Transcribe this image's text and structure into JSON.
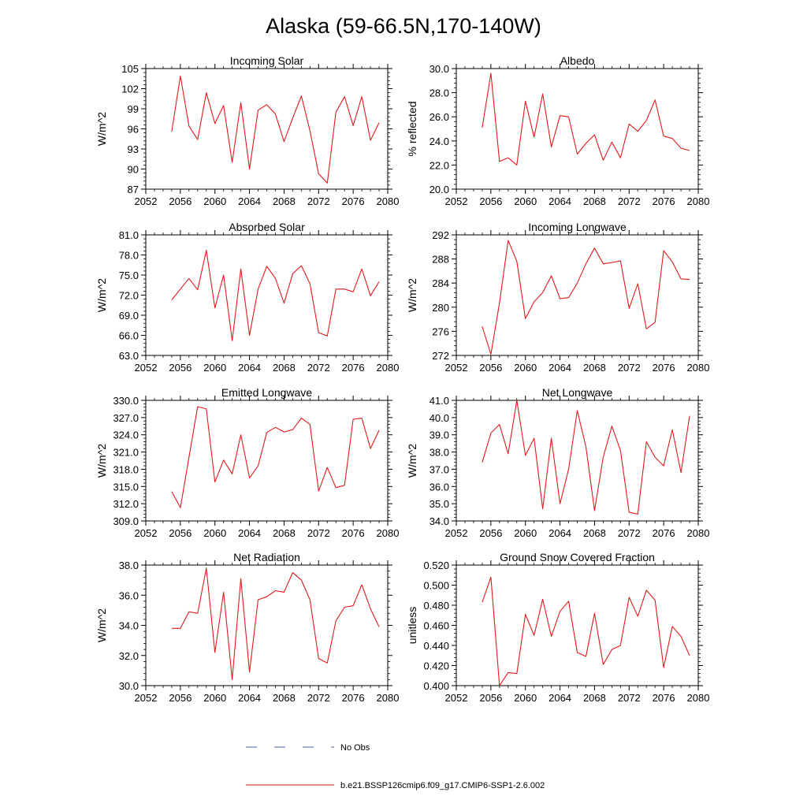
{
  "figure": {
    "title": "Alaska (59-66.5N,170-140W)"
  },
  "legend": {
    "obs_label": "No Obs",
    "obs_color": "#4a5fb0",
    "model_label": "b.e21.BSSP126cmip6.f09_g17.CMIP6-SSP1-2.6.002",
    "model_color": "#e31a1c"
  },
  "chart_data": [
    {
      "type": "line",
      "title": "Incoming Solar",
      "ylabel": "W/m^2",
      "xlim": [
        2052,
        2080
      ],
      "ylim": [
        87,
        105
      ],
      "x_ticks": [
        2052,
        2056,
        2060,
        2064,
        2068,
        2072,
        2076,
        2080
      ],
      "y_ticks": [
        "87",
        "90",
        "93",
        "96",
        "99",
        "102",
        "105"
      ],
      "x": [
        2055,
        2056,
        2057,
        2058,
        2059,
        2060,
        2061,
        2062,
        2063,
        2064,
        2065,
        2066,
        2067,
        2068,
        2069,
        2070,
        2071,
        2072,
        2073,
        2074,
        2075,
        2076,
        2077,
        2078,
        2079
      ],
      "series": [
        {
          "values": [
            95.6,
            103.9,
            96.4,
            94.4,
            101.4,
            96.8,
            99.5,
            91.0,
            99.9,
            90.0,
            98.8,
            99.6,
            98.2,
            94.1,
            97.6,
            100.9,
            95.7,
            89.3,
            87.9,
            98.5,
            100.8,
            96.5,
            100.8,
            94.3,
            96.9
          ],
          "color": "#e31a1c"
        }
      ]
    },
    {
      "type": "line",
      "title": "Albedo",
      "ylabel": "% reflected",
      "xlim": [
        2052,
        2080
      ],
      "ylim": [
        20,
        30
      ],
      "x_ticks": [
        2052,
        2056,
        2060,
        2064,
        2068,
        2072,
        2076,
        2080
      ],
      "y_ticks": [
        "20.0",
        "22.0",
        "24.0",
        "26.0",
        "28.0",
        "30.0"
      ],
      "x": [
        2055,
        2056,
        2057,
        2058,
        2059,
        2060,
        2061,
        2062,
        2063,
        2064,
        2065,
        2066,
        2067,
        2068,
        2069,
        2070,
        2071,
        2072,
        2073,
        2074,
        2075,
        2076,
        2077,
        2078,
        2079
      ],
      "series": [
        {
          "values": [
            25.1,
            29.6,
            22.3,
            22.6,
            22.0,
            27.3,
            24.3,
            27.9,
            23.5,
            26.1,
            26.0,
            22.9,
            23.8,
            24.5,
            22.4,
            23.9,
            22.6,
            25.4,
            24.8,
            25.7,
            27.4,
            24.4,
            24.2,
            23.4,
            23.2
          ],
          "color": "#e31a1c"
        }
      ]
    },
    {
      "type": "line",
      "title": "Absorbed Solar",
      "ylabel": "W/m^2",
      "xlim": [
        2052,
        2080
      ],
      "ylim": [
        63,
        81
      ],
      "x_ticks": [
        2052,
        2056,
        2060,
        2064,
        2068,
        2072,
        2076,
        2080
      ],
      "y_ticks": [
        "63.0",
        "66.0",
        "69.0",
        "72.0",
        "75.0",
        "78.0",
        "81.0"
      ],
      "x": [
        2055,
        2056,
        2057,
        2058,
        2059,
        2060,
        2061,
        2062,
        2063,
        2064,
        2065,
        2066,
        2067,
        2068,
        2069,
        2070,
        2071,
        2072,
        2073,
        2074,
        2075,
        2076,
        2077,
        2078,
        2079
      ],
      "series": [
        {
          "values": [
            71.3,
            72.9,
            74.5,
            72.8,
            78.7,
            70.1,
            75.0,
            65.2,
            75.9,
            66.0,
            72.9,
            76.3,
            74.5,
            70.8,
            75.2,
            76.4,
            73.7,
            66.4,
            65.9,
            72.9,
            72.9,
            72.5,
            75.9,
            71.9,
            74.0
          ],
          "color": "#e31a1c"
        }
      ]
    },
    {
      "type": "line",
      "title": "Incoming Longwave",
      "ylabel": "W/m^2",
      "xlim": [
        2052,
        2080
      ],
      "ylim": [
        272,
        292
      ],
      "x_ticks": [
        2052,
        2056,
        2060,
        2064,
        2068,
        2072,
        2076,
        2080
      ],
      "y_ticks": [
        "272",
        "276",
        "280",
        "284",
        "288",
        "292"
      ],
      "x": [
        2055,
        2056,
        2057,
        2058,
        2059,
        2060,
        2061,
        2062,
        2063,
        2064,
        2065,
        2066,
        2067,
        2068,
        2069,
        2070,
        2071,
        2072,
        2073,
        2074,
        2075,
        2076,
        2077,
        2078,
        2079
      ],
      "series": [
        {
          "values": [
            276.8,
            272.2,
            280.7,
            291.1,
            287.6,
            278.1,
            280.9,
            282.4,
            285.2,
            281.4,
            281.6,
            284.0,
            287.2,
            289.8,
            287.2,
            287.4,
            287.7,
            279.8,
            283.9,
            276.4,
            277.5,
            289.4,
            287.5,
            284.7,
            284.6
          ],
          "color": "#e31a1c"
        }
      ]
    },
    {
      "type": "line",
      "title": "Emitted Longwave",
      "ylabel": "W/m^2",
      "xlim": [
        2052,
        2080
      ],
      "ylim": [
        309,
        330
      ],
      "x_ticks": [
        2052,
        2056,
        2060,
        2064,
        2068,
        2072,
        2076,
        2080
      ],
      "y_ticks": [
        "309.0",
        "312.0",
        "315.0",
        "318.0",
        "321.0",
        "324.0",
        "327.0",
        "330.0"
      ],
      "x": [
        2055,
        2056,
        2057,
        2058,
        2059,
        2060,
        2061,
        2062,
        2063,
        2064,
        2065,
        2066,
        2067,
        2068,
        2069,
        2070,
        2071,
        2072,
        2073,
        2074,
        2075,
        2076,
        2077,
        2078,
        2079
      ],
      "series": [
        {
          "values": [
            314.1,
            311.3,
            320.1,
            328.9,
            328.5,
            315.8,
            319.6,
            317.2,
            324.0,
            316.5,
            318.6,
            324.4,
            325.3,
            324.5,
            324.9,
            326.9,
            325.8,
            314.2,
            318.3,
            314.8,
            315.2,
            326.7,
            326.9,
            321.6,
            324.8
          ],
          "color": "#e31a1c"
        }
      ]
    },
    {
      "type": "line",
      "title": "Net Longwave",
      "ylabel": "W/m^2",
      "xlim": [
        2052,
        2080
      ],
      "ylim": [
        34,
        41
      ],
      "x_ticks": [
        2052,
        2056,
        2060,
        2064,
        2068,
        2072,
        2076,
        2080
      ],
      "y_ticks": [
        "34.0",
        "35.0",
        "36.0",
        "37.0",
        "38.0",
        "39.0",
        "40.0",
        "41.0"
      ],
      "x": [
        2055,
        2056,
        2057,
        2058,
        2059,
        2060,
        2061,
        2062,
        2063,
        2064,
        2065,
        2066,
        2067,
        2068,
        2069,
        2070,
        2071,
        2072,
        2073,
        2074,
        2075,
        2076,
        2077,
        2078,
        2079
      ],
      "series": [
        {
          "values": [
            37.4,
            39.1,
            39.6,
            37.9,
            41.0,
            37.8,
            38.8,
            34.7,
            38.8,
            35.0,
            37.0,
            40.4,
            38.3,
            34.6,
            37.7,
            39.5,
            38.1,
            34.5,
            34.4,
            38.6,
            37.7,
            37.2,
            39.3,
            36.8,
            40.1
          ],
          "color": "#e31a1c"
        }
      ]
    },
    {
      "type": "line",
      "title": "Net Radiation",
      "ylabel": "W/m^2",
      "xlim": [
        2052,
        2080
      ],
      "ylim": [
        30,
        38
      ],
      "x_ticks": [
        2052,
        2056,
        2060,
        2064,
        2068,
        2072,
        2076,
        2080
      ],
      "y_ticks": [
        "30.0",
        "32.0",
        "34.0",
        "36.0",
        "38.0"
      ],
      "x": [
        2055,
        2056,
        2057,
        2058,
        2059,
        2060,
        2061,
        2062,
        2063,
        2064,
        2065,
        2066,
        2067,
        2068,
        2069,
        2070,
        2071,
        2072,
        2073,
        2074,
        2075,
        2076,
        2077,
        2078,
        2079
      ],
      "series": [
        {
          "values": [
            33.8,
            33.8,
            34.9,
            34.8,
            37.8,
            32.2,
            36.2,
            30.4,
            37.1,
            30.9,
            35.7,
            35.9,
            36.3,
            36.2,
            37.5,
            37.0,
            35.7,
            31.8,
            31.5,
            34.3,
            35.2,
            35.3,
            36.7,
            35.1,
            33.9
          ],
          "color": "#e31a1c"
        }
      ]
    },
    {
      "type": "line",
      "title": "Ground Snow Covered Fraction",
      "ylabel": "unitless",
      "xlim": [
        2052,
        2080
      ],
      "ylim": [
        0.4,
        0.52
      ],
      "x_ticks": [
        2052,
        2056,
        2060,
        2064,
        2068,
        2072,
        2076,
        2080
      ],
      "y_ticks": [
        "0.400",
        "0.420",
        "0.440",
        "0.460",
        "0.480",
        "0.500",
        "0.520"
      ],
      "x": [
        2055,
        2056,
        2057,
        2058,
        2059,
        2060,
        2061,
        2062,
        2063,
        2064,
        2065,
        2066,
        2067,
        2068,
        2069,
        2070,
        2071,
        2072,
        2073,
        2074,
        2075,
        2076,
        2077,
        2078,
        2079
      ],
      "series": [
        {
          "values": [
            0.483,
            0.508,
            0.4,
            0.413,
            0.412,
            0.471,
            0.45,
            0.486,
            0.449,
            0.474,
            0.484,
            0.433,
            0.429,
            0.472,
            0.421,
            0.436,
            0.44,
            0.488,
            0.469,
            0.495,
            0.485,
            0.418,
            0.459,
            0.449,
            0.43
          ],
          "color": "#e31a1c"
        }
      ]
    }
  ]
}
